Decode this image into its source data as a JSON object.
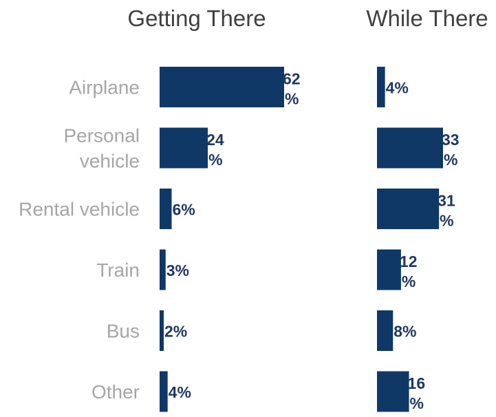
{
  "chart_data": [
    {
      "type": "bar",
      "orientation": "horizontal",
      "title": "Getting There",
      "categories": [
        "Airplane",
        "Personal vehicle",
        "Rental vehicle",
        "Train",
        "Bus",
        "Other"
      ],
      "values": [
        62,
        24,
        6,
        3,
        2,
        4
      ],
      "value_labels": [
        "62%",
        "24%",
        "6%",
        "3%",
        "2%",
        "4%"
      ],
      "unit": "%",
      "grid": false,
      "color": "#0f3866"
    },
    {
      "type": "bar",
      "orientation": "horizontal",
      "title": "While There",
      "categories": [
        "Airplane",
        "Personal vehicle",
        "Rental vehicle",
        "Train",
        "Bus",
        "Other"
      ],
      "values": [
        4,
        33,
        31,
        12,
        8,
        16
      ],
      "value_labels": [
        "4%",
        "33%",
        "31%",
        "12%",
        "8%",
        "16%"
      ],
      "unit": "%",
      "grid": false,
      "color": "#0f3866"
    }
  ],
  "category_labels": [
    [
      "Airplane"
    ],
    [
      "Personal",
      "vehicle"
    ],
    [
      "Rental vehicle"
    ],
    [
      "Train"
    ],
    [
      "Bus"
    ],
    [
      "Other"
    ]
  ]
}
